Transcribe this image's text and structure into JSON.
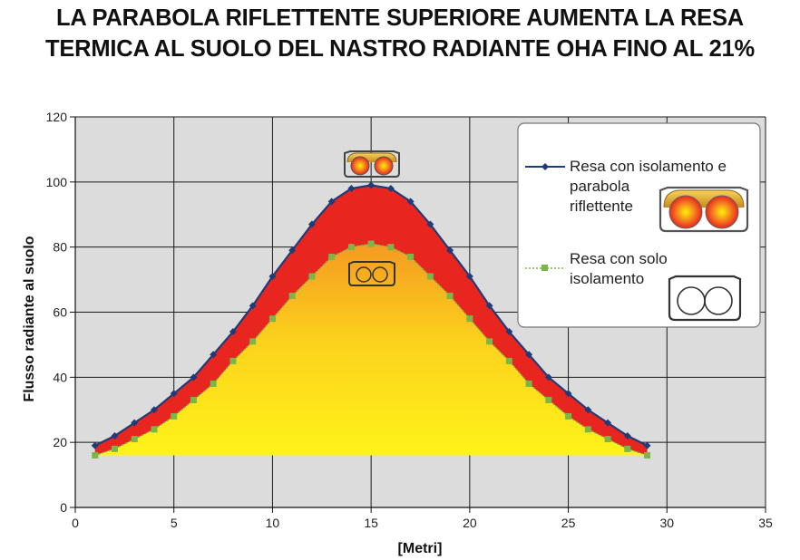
{
  "titles": {
    "line1": "LA PARABOLA RIFLETTENTE SUPERIORE AUMENTA LA RESA",
    "line2": "TERMICA AL SUOLO DEL NASTRO RADIANTE OHA FINO AL 21%"
  },
  "chart_data": {
    "type": "line",
    "xlabel": "[Metri]",
    "ylabel": "Flusso radiante al suolo",
    "xlim": [
      0,
      35
    ],
    "ylim": [
      0,
      120
    ],
    "xticks": [
      0,
      5,
      10,
      15,
      20,
      25,
      30,
      35
    ],
    "yticks": [
      0,
      20,
      40,
      60,
      80,
      100,
      120
    ],
    "grid": true,
    "legend_position": "top-right",
    "x": [
      1,
      2,
      3,
      4,
      5,
      6,
      7,
      8,
      9,
      10,
      11,
      12,
      13,
      14,
      15,
      16,
      17,
      18,
      19,
      20,
      21,
      22,
      23,
      24,
      25,
      26,
      27,
      28,
      29
    ],
    "series": [
      {
        "name_lines": [
          "Resa con isolamento e",
          "parabola",
          "riflettente"
        ],
        "color": "#1f3c78",
        "marker": "diamond",
        "line_style": "solid",
        "values": [
          19,
          22,
          26,
          30,
          35,
          40,
          47,
          54,
          62,
          71,
          79,
          87,
          94,
          98,
          99,
          98,
          94,
          87,
          79,
          71,
          62,
          54,
          47,
          40,
          35,
          30,
          26,
          22,
          19
        ]
      },
      {
        "name_lines": [
          "Resa con solo",
          "isolamento"
        ],
        "color": "#7ab648",
        "marker": "square",
        "line_style": "dotted",
        "values": [
          16,
          18,
          21,
          24,
          28,
          33,
          38,
          45,
          51,
          58,
          65,
          71,
          77,
          80,
          81,
          80,
          77,
          71,
          65,
          58,
          51,
          45,
          38,
          33,
          28,
          24,
          21,
          18,
          16
        ]
      }
    ],
    "fill_colors": {
      "between_series": "#e8251f",
      "under_lower_top": "#f59a22",
      "under_lower_bottom": "#fff31a"
    },
    "fill_base": 16
  }
}
